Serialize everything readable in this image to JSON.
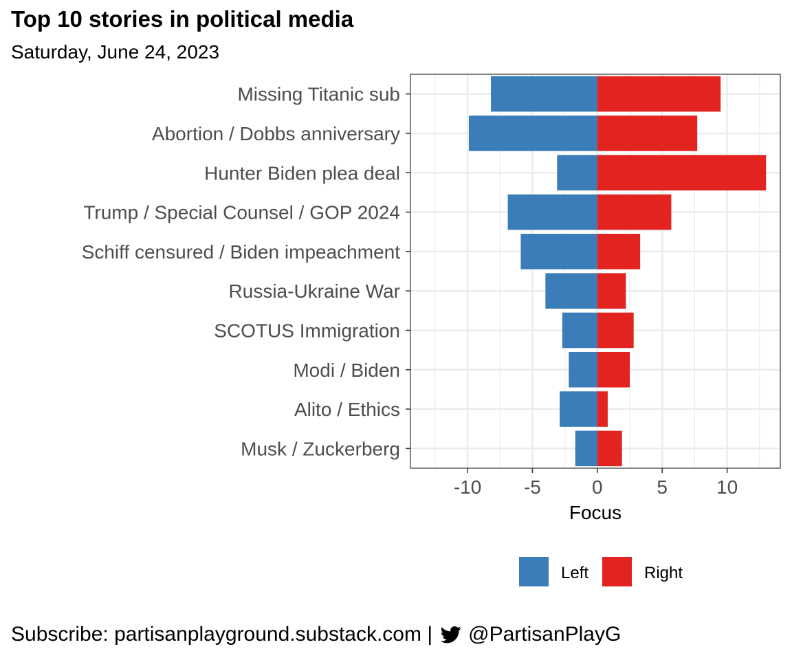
{
  "title": "Top 10 stories in political media",
  "subtitle": "Saturday, June 24, 2023",
  "footer": {
    "subscribe": "Subscribe: partisanplayground.substack.com |",
    "handle": "@PartisanPlayG",
    "icon": "twitter-bird-icon"
  },
  "colors": {
    "left": "#3A7DB8",
    "right": "#E3231F",
    "grid": "#EBEBEB",
    "panel_border": "#333333"
  },
  "chart_data": {
    "type": "bar",
    "orientation": "horizontal",
    "categories": [
      "Missing Titanic sub",
      "Abortion / Dobbs anniversary",
      "Hunter Biden plea deal",
      "Trump / Special Counsel / GOP 2024",
      "Schiff censured / Biden impeachment",
      "Russia-Ukraine War",
      "SCOTUS Immigration",
      "Modi / Biden",
      "Alito / Ethics",
      "Musk / Zuckerberg"
    ],
    "series": [
      {
        "name": "Left",
        "values": [
          -8.2,
          -9.9,
          -3.1,
          -6.9,
          -5.9,
          -4.0,
          -2.7,
          -2.2,
          -2.9,
          -1.7
        ]
      },
      {
        "name": "Right",
        "values": [
          9.5,
          7.7,
          13.0,
          5.7,
          3.3,
          2.2,
          2.8,
          2.5,
          0.8,
          1.9
        ]
      }
    ],
    "xlabel": "Focus",
    "ylabel": "",
    "xlim": [
      -14.4,
      14.1
    ],
    "xticks": [
      "-10",
      "-5",
      "0",
      "5",
      "10"
    ],
    "xtick_values": [
      -10,
      -5,
      0,
      5,
      10
    ],
    "legend_position": "bottom",
    "grid": true
  }
}
